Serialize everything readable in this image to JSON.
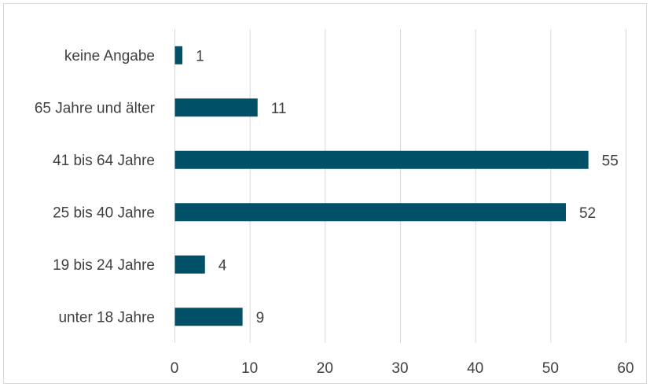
{
  "chart_data": {
    "type": "bar",
    "orientation": "horizontal",
    "categories": [
      "keine Angabe",
      "65 Jahre und älter",
      "41 bis 64 Jahre",
      "25 bis 40 Jahre",
      "19 bis 24 Jahre",
      "unter 18 Jahre"
    ],
    "values": [
      1,
      11,
      55,
      52,
      4,
      9
    ],
    "title": "",
    "xlabel": "",
    "ylabel": "",
    "xlim": [
      0,
      60
    ],
    "xticks": [
      0,
      10,
      20,
      30,
      40,
      50,
      60
    ],
    "grid": true,
    "data_labels": true,
    "bar_color": "#005068"
  }
}
